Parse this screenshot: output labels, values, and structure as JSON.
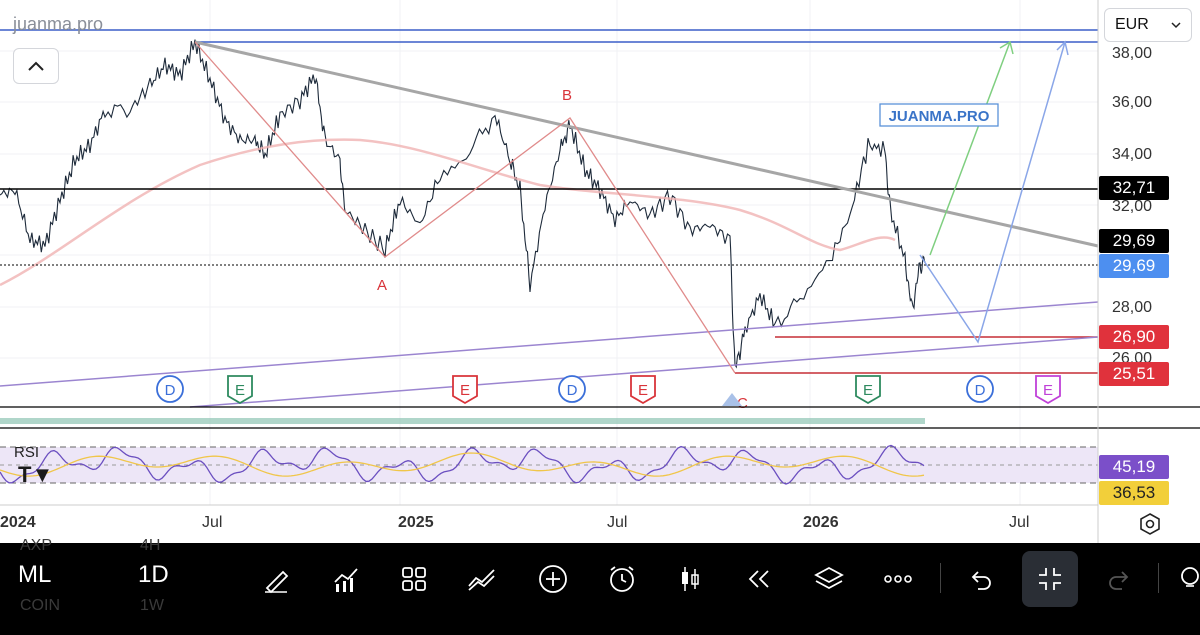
{
  "app": {
    "watermark": "juanma.pro",
    "brand_box": "JUANMA.PRO",
    "currency": "EUR",
    "collapse_icon": "chevron-up-icon"
  },
  "price_axis": {
    "ticks": [
      "38,00",
      "36,00",
      "34,00",
      "32,00",
      "28,00",
      "26,00"
    ],
    "labels": [
      {
        "value": "32,71",
        "color": "#000000"
      },
      {
        "value": "29,69",
        "color": "#000000"
      },
      {
        "value": "29,69",
        "color": "#4d8ff0"
      },
      {
        "value": "26,90",
        "color": "#e0323c"
      },
      {
        "value": "25,51",
        "color": "#e0323c"
      }
    ]
  },
  "time_axis": [
    "2024",
    "Jul",
    "2025",
    "Jul",
    "2026",
    "Jul"
  ],
  "wave_labels": [
    "A",
    "B",
    "C"
  ],
  "event_markers": [
    {
      "letter": "D",
      "kind": "dividend",
      "color": "#3b6fd9"
    },
    {
      "letter": "E",
      "kind": "earnings",
      "color": "#2e8a5f"
    },
    {
      "letter": "E",
      "kind": "earnings",
      "color": "#d9343a"
    },
    {
      "letter": "D",
      "kind": "dividend",
      "color": "#3b6fd9"
    },
    {
      "letter": "E",
      "kind": "earnings",
      "color": "#d9343a"
    },
    {
      "letter": "E",
      "kind": "earnings",
      "color": "#2e8a5f"
    },
    {
      "letter": "D",
      "kind": "dividend",
      "color": "#3b6fd9"
    },
    {
      "letter": "E",
      "kind": "earnings",
      "color": "#c040d8"
    }
  ],
  "rsi": {
    "title": "RSI",
    "value_1": "45,19",
    "value_2": "36,53",
    "color_1": "#7b4fc9",
    "color_2": "#f2cf3a"
  },
  "toolbar": {
    "ghost_symbol_1": "AXP",
    "ghost_interval_1": "4H",
    "ghost_symbol_2": "COIN",
    "ghost_interval_2": "1W",
    "symbol": "ML",
    "interval": "1D",
    "icons": [
      "pen-icon",
      "indicators-icon",
      "layout-grid-icon",
      "drawing-tools-icon",
      "add-icon",
      "alarm-icon",
      "candles-icon",
      "replay-icon",
      "layers-icon",
      "more-icon",
      "undo-icon",
      "fullscreen-exit-icon",
      "redo-icon",
      "light-icon"
    ]
  },
  "settings_icon": "settings-hexagon-icon"
}
